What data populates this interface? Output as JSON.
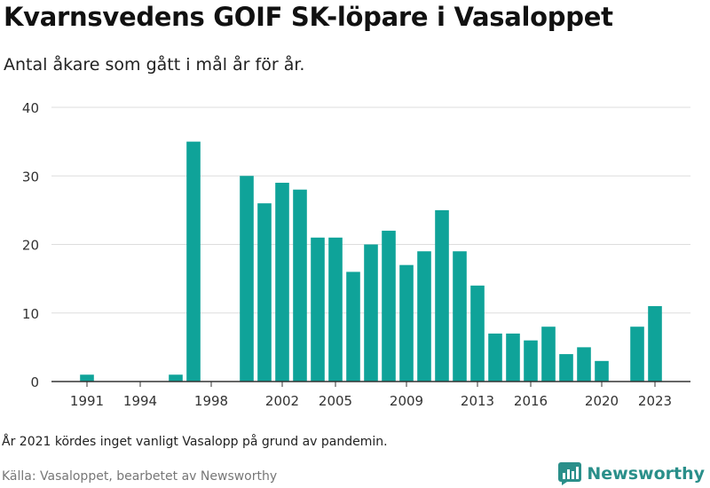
{
  "header": {
    "title": "Kvarnsvedens GOIF SK-löpare i Vasaloppet",
    "subtitle": "Antal åkare som gått i mål år för år."
  },
  "footer": {
    "note": "År 2021 kördes inget vanligt Vasalopp på grund av pandemin.",
    "source": "Källa: Vasaloppet, bearbetet av Newsworthy",
    "logo_text": "Newsworthy"
  },
  "colors": {
    "bar": "#0fa399",
    "grid": "#dddddd",
    "axis": "#333333",
    "logo": "#2a8f8a"
  },
  "chart_data": {
    "type": "bar",
    "title": "Kvarnsvedens GOIF SK-löpare i Vasaloppet",
    "subtitle": "Antal åkare som gått i mål år för år.",
    "x": [
      1991,
      1996,
      1997,
      2000,
      2001,
      2002,
      2003,
      2004,
      2005,
      2006,
      2007,
      2008,
      2009,
      2010,
      2011,
      2012,
      2013,
      2014,
      2015,
      2016,
      2017,
      2018,
      2019,
      2020,
      2022,
      2023
    ],
    "values": [
      1,
      1,
      35,
      30,
      26,
      29,
      28,
      21,
      21,
      16,
      20,
      22,
      17,
      19,
      25,
      19,
      14,
      7,
      7,
      6,
      8,
      4,
      5,
      3,
      8,
      11
    ],
    "xlim": [
      1989,
      2025
    ],
    "ylim": [
      0,
      40
    ],
    "yticks": [
      0,
      10,
      20,
      30,
      40
    ],
    "xticks": [
      1991,
      1994,
      1998,
      2002,
      2005,
      2009,
      2013,
      2016,
      2020,
      2023
    ],
    "grid": true,
    "legend": "none"
  }
}
